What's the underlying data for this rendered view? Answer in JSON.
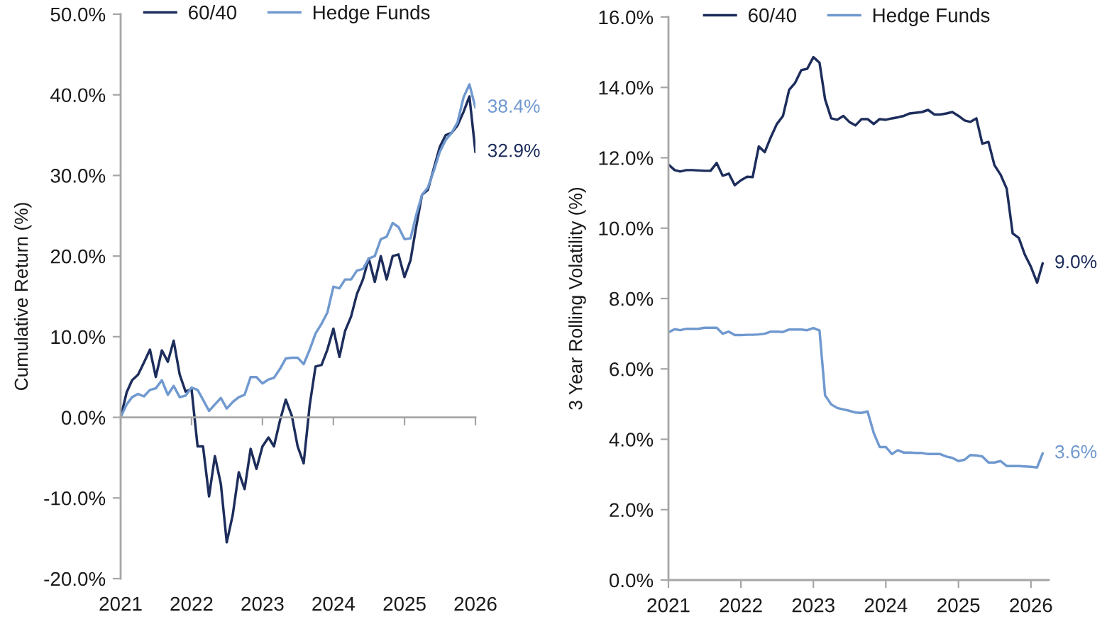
{
  "chart_data": [
    {
      "type": "line",
      "ylabel": "Cumulative Return (%)",
      "legend": "top",
      "x": [
        "2021-01",
        "2021-02",
        "2021-03",
        "2021-04",
        "2021-05",
        "2021-06",
        "2021-07",
        "2021-08",
        "2021-09",
        "2021-10",
        "2021-11",
        "2021-12",
        "2022-01",
        "2022-02",
        "2022-03",
        "2022-04",
        "2022-05",
        "2022-06",
        "2022-07",
        "2022-08",
        "2022-09",
        "2022-10",
        "2022-11",
        "2022-12",
        "2023-01",
        "2023-02",
        "2023-03",
        "2023-04",
        "2023-05",
        "2023-06",
        "2023-07",
        "2023-08",
        "2023-09",
        "2023-10",
        "2023-11",
        "2023-12",
        "2024-01",
        "2024-02",
        "2024-03",
        "2024-04",
        "2024-05",
        "2024-06",
        "2024-07",
        "2024-08",
        "2024-09",
        "2024-10",
        "2024-11",
        "2024-12",
        "2025-01",
        "2025-02",
        "2025-03",
        "2025-04",
        "2025-05",
        "2025-06",
        "2025-07",
        "2025-08",
        "2025-09",
        "2025-10",
        "2025-11",
        "2025-12",
        "2026-01"
      ],
      "xlim": [
        "2021-01",
        "2026-01"
      ],
      "xticks": [
        "2021",
        "2022",
        "2023",
        "2024",
        "2025",
        "2026"
      ],
      "ylim": [
        -20,
        50
      ],
      "yticks": [
        {
          "value": -20,
          "label": "-20.0%"
        },
        {
          "value": -10,
          "label": "-10.0%"
        },
        {
          "value": 0,
          "label": "0.0%"
        },
        {
          "value": 10,
          "label": "10.0%"
        },
        {
          "value": 20,
          "label": "20.0%"
        },
        {
          "value": 30,
          "label": "30.0%"
        },
        {
          "value": 40,
          "label": "40.0%"
        },
        {
          "value": 50,
          "label": "50.0%"
        }
      ],
      "series": [
        {
          "name": "60/40",
          "color": "#1d2d5c",
          "values": [
            0,
            3.1,
            4.6,
            5.3,
            6.8,
            8.4,
            5.0,
            8.3,
            6.9,
            9.5,
            5.3,
            3.2,
            3.5,
            -3.6,
            -3.6,
            -9.8,
            -4.8,
            -8.3,
            -15.5,
            -12.1,
            -6.8,
            -8.9,
            -3.9,
            -6.4,
            -3.6,
            -2.5,
            -3.6,
            -0.4,
            2.2,
            0.2,
            -3.6,
            -5.7,
            1.5,
            6.3,
            6.5,
            8.4,
            11.0,
            7.5,
            10.7,
            12.5,
            15.3,
            17.1,
            19.7,
            16.8,
            20.0,
            17.1,
            20.0,
            20.2,
            17.4,
            19.5,
            23.5,
            27.6,
            28.2,
            30.9,
            33.5,
            35.0,
            35.3,
            36.2,
            37.9,
            39.8,
            32.9
          ],
          "value_labels": [
            null,
            null,
            null,
            null,
            null,
            null,
            null,
            null,
            null,
            null,
            null,
            null,
            null,
            null,
            null,
            null,
            null,
            null,
            null,
            null,
            null,
            null,
            null,
            null,
            null,
            null,
            null,
            null,
            null,
            null,
            null,
            null,
            null,
            null,
            null,
            null,
            null,
            null,
            null,
            null,
            null,
            null,
            null,
            null,
            null,
            null,
            null,
            null,
            null,
            null,
            null,
            null,
            null,
            null,
            null,
            null,
            null,
            null,
            null,
            null,
            "32.9%"
          ]
        },
        {
          "name": "Hedge Funds",
          "color": "#7099cf",
          "values": [
            0,
            1.6,
            2.5,
            2.9,
            2.6,
            3.4,
            3.6,
            4.6,
            2.8,
            3.9,
            2.5,
            2.7,
            3.7,
            3.4,
            2.2,
            0.8,
            1.6,
            2.4,
            1.1,
            1.9,
            2.5,
            2.8,
            5.0,
            5.0,
            4.2,
            4.7,
            4.9,
            6.0,
            7.3,
            7.4,
            7.4,
            6.6,
            8.4,
            10.4,
            11.6,
            13.0,
            16.2,
            16.0,
            17.1,
            17.1,
            18.2,
            18.4,
            19.7,
            20.0,
            22.1,
            22.4,
            24.1,
            23.6,
            22.1,
            22.2,
            25.0,
            27.6,
            28.5,
            30.6,
            32.9,
            34.4,
            35.3,
            36.6,
            39.7,
            41.3,
            38.4
          ],
          "value_labels": [
            null,
            null,
            null,
            null,
            null,
            null,
            null,
            null,
            null,
            null,
            null,
            null,
            null,
            null,
            null,
            null,
            null,
            null,
            null,
            null,
            null,
            null,
            null,
            null,
            null,
            null,
            null,
            null,
            null,
            null,
            null,
            null,
            null,
            null,
            null,
            null,
            null,
            null,
            null,
            null,
            null,
            null,
            null,
            null,
            null,
            null,
            null,
            null,
            null,
            null,
            null,
            null,
            null,
            null,
            null,
            null,
            null,
            null,
            null,
            null,
            "38.4%"
          ]
        }
      ]
    },
    {
      "type": "line",
      "ylabel": "3 Year Rolling Volatility (%)",
      "legend": "top",
      "x": [
        "2021-01",
        "2021-02",
        "2021-03",
        "2021-04",
        "2021-05",
        "2021-06",
        "2021-07",
        "2021-08",
        "2021-09",
        "2021-10",
        "2021-11",
        "2021-12",
        "2022-01",
        "2022-02",
        "2022-03",
        "2022-04",
        "2022-05",
        "2022-06",
        "2022-07",
        "2022-08",
        "2022-09",
        "2022-10",
        "2022-11",
        "2022-12",
        "2023-01",
        "2023-02",
        "2023-03",
        "2023-04",
        "2023-05",
        "2023-06",
        "2023-07",
        "2023-08",
        "2023-09",
        "2023-10",
        "2023-11",
        "2023-12",
        "2024-01",
        "2024-02",
        "2024-03",
        "2024-04",
        "2024-05",
        "2024-06",
        "2024-07",
        "2024-08",
        "2024-09",
        "2024-10",
        "2024-11",
        "2024-12",
        "2025-01",
        "2025-02",
        "2025-03",
        "2025-04",
        "2025-05",
        "2025-06",
        "2025-07",
        "2025-08",
        "2025-09",
        "2025-10",
        "2025-11",
        "2025-12",
        "2026-01",
        "2026-02",
        "2026-03"
      ],
      "xlim": [
        "2021-01",
        "2026-04"
      ],
      "xticks": [
        "2021",
        "2022",
        "2023",
        "2024",
        "2025",
        "2026"
      ],
      "ylim": [
        0,
        16
      ],
      "yticks": [
        {
          "value": 0,
          "label": "0.0%"
        },
        {
          "value": 2,
          "label": "2.0%"
        },
        {
          "value": 4,
          "label": "4.0%"
        },
        {
          "value": 6,
          "label": "6.0%"
        },
        {
          "value": 8,
          "label": "8.0%"
        },
        {
          "value": 10,
          "label": "10.0%"
        },
        {
          "value": 12,
          "label": "12.0%"
        },
        {
          "value": 14,
          "label": "14.0%"
        },
        {
          "value": 16,
          "label": "16.0%"
        }
      ],
      "series": [
        {
          "name": "60/40",
          "color": "#1d2d5c",
          "values": [
            11.81,
            11.65,
            11.61,
            11.65,
            11.65,
            11.64,
            11.63,
            11.63,
            11.85,
            11.49,
            11.55,
            11.22,
            11.36,
            11.46,
            11.45,
            12.32,
            12.16,
            12.59,
            12.96,
            13.19,
            13.93,
            14.13,
            14.49,
            14.53,
            14.86,
            14.7,
            13.66,
            13.12,
            13.08,
            13.19,
            13.02,
            12.92,
            13.1,
            13.1,
            12.96,
            13.1,
            13.08,
            13.12,
            13.15,
            13.19,
            13.26,
            13.28,
            13.3,
            13.36,
            13.23,
            13.23,
            13.26,
            13.3,
            13.19,
            13.06,
            13.02,
            13.12,
            12.4,
            12.45,
            11.79,
            11.52,
            11.12,
            9.85,
            9.72,
            9.25,
            8.9,
            8.45,
            9.0
          ],
          "value_labels": [
            null,
            null,
            null,
            null,
            null,
            null,
            null,
            null,
            null,
            null,
            null,
            null,
            null,
            null,
            null,
            null,
            null,
            null,
            null,
            null,
            null,
            null,
            null,
            null,
            null,
            null,
            null,
            null,
            null,
            null,
            null,
            null,
            null,
            null,
            null,
            null,
            null,
            null,
            null,
            null,
            null,
            null,
            null,
            null,
            null,
            null,
            null,
            null,
            null,
            null,
            null,
            null,
            null,
            null,
            null,
            null,
            null,
            null,
            null,
            null,
            null,
            null,
            "9.0%"
          ]
        },
        {
          "name": "Hedge Funds",
          "color": "#7099cf",
          "values": [
            7.04,
            7.13,
            7.1,
            7.14,
            7.14,
            7.14,
            7.17,
            7.17,
            7.17,
            7.0,
            7.06,
            6.96,
            6.96,
            6.97,
            6.97,
            6.98,
            7.0,
            7.06,
            7.06,
            7.05,
            7.12,
            7.12,
            7.12,
            7.1,
            7.16,
            7.09,
            5.25,
            4.99,
            4.89,
            4.85,
            4.81,
            4.76,
            4.75,
            4.79,
            4.18,
            3.78,
            3.78,
            3.58,
            3.69,
            3.62,
            3.62,
            3.61,
            3.61,
            3.58,
            3.58,
            3.58,
            3.51,
            3.47,
            3.38,
            3.42,
            3.55,
            3.54,
            3.51,
            3.34,
            3.34,
            3.38,
            3.24,
            3.24,
            3.24,
            3.23,
            3.22,
            3.2,
            3.6
          ],
          "value_labels": [
            null,
            null,
            null,
            null,
            null,
            null,
            null,
            null,
            null,
            null,
            null,
            null,
            null,
            null,
            null,
            null,
            null,
            null,
            null,
            null,
            null,
            null,
            null,
            null,
            null,
            null,
            null,
            null,
            null,
            null,
            null,
            null,
            null,
            null,
            null,
            null,
            null,
            null,
            null,
            null,
            null,
            null,
            null,
            null,
            null,
            null,
            null,
            null,
            null,
            null,
            null,
            null,
            null,
            null,
            null,
            null,
            null,
            null,
            null,
            null,
            null,
            null,
            "3.6%"
          ]
        }
      ]
    }
  ]
}
